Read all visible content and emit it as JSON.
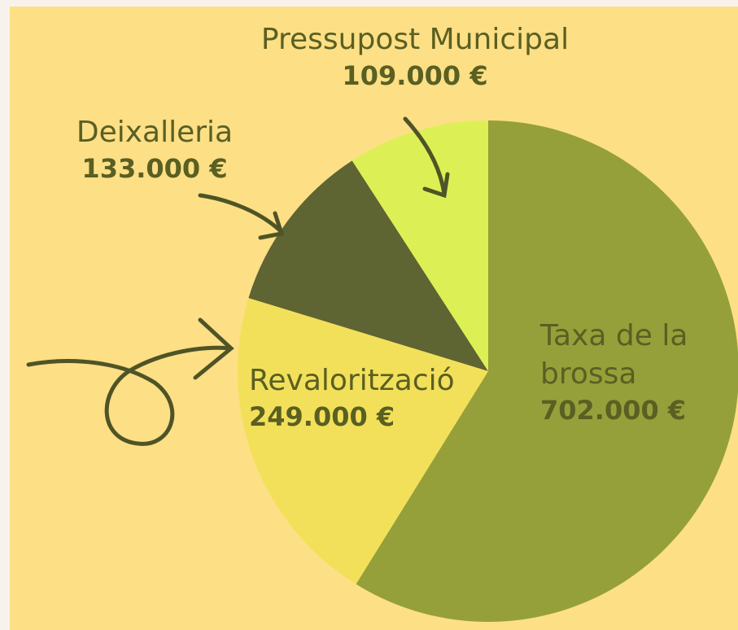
{
  "chart_data": {
    "type": "pie",
    "categories": [
      "Taxa de la brossa",
      "Revalorització",
      "Deixalleria",
      "Pressupost Municipal"
    ],
    "values": [
      702000,
      249000,
      133000,
      109000
    ],
    "value_labels": [
      "702.000 €",
      "249.000 €",
      "133.000 €",
      "109.000 €"
    ],
    "colors": [
      "#95a03a",
      "#f3e05a",
      "#5e6432",
      "#dcf055"
    ]
  }
}
